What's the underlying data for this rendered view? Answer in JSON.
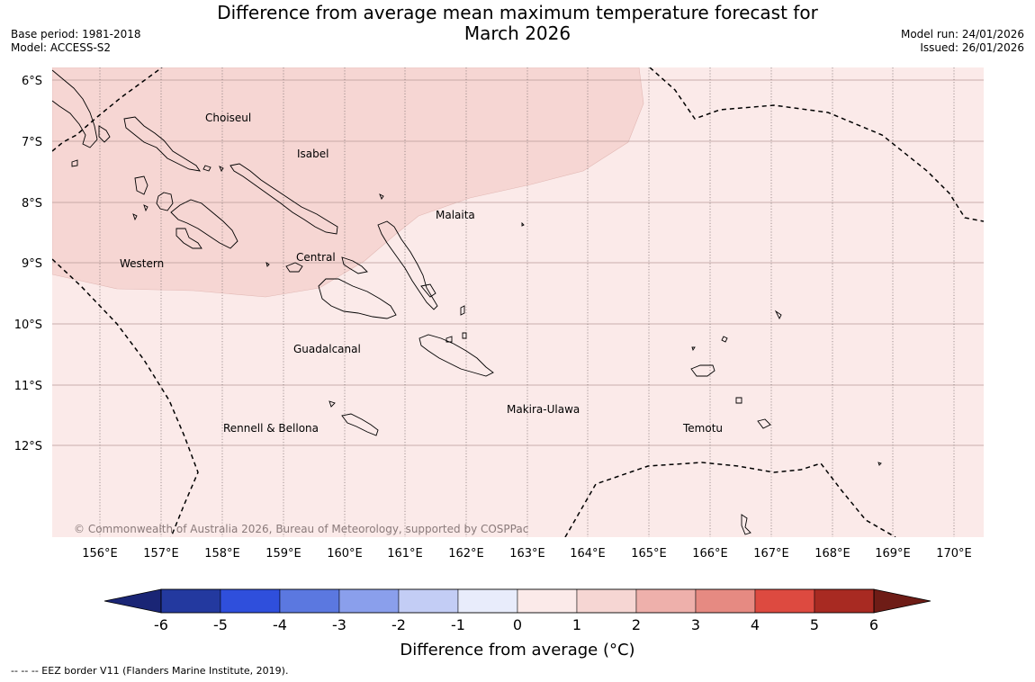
{
  "title": {
    "line1": "Difference from average mean maximum temperature forecast for",
    "line2": "March 2026"
  },
  "meta": {
    "base_period": "Base period: 1981-2018",
    "model": "Model: ACCESS-S2",
    "model_run": "Model run: 24/01/2026",
    "issued": "Issued: 26/01/2026"
  },
  "map": {
    "lat_labels": [
      "6°S",
      "7°S",
      "8°S",
      "9°S",
      "10°S",
      "11°S",
      "12°S"
    ],
    "lon_labels": [
      "156°E",
      "157°E",
      "158°E",
      "159°E",
      "160°E",
      "161°E",
      "162°E",
      "163°E",
      "164°E",
      "165°E",
      "166°E",
      "167°E",
      "168°E",
      "169°E",
      "170°E"
    ],
    "region_labels": [
      "Choiseul",
      "Isabel",
      "Malaita",
      "Western",
      "Central",
      "Guadalcanal",
      "Makira-Ulawa",
      "Rennell & Bellona",
      "Temotu"
    ],
    "copyright": "© Commonwealth of Australia 2026, Bureau of Meteorology, supported by COSPPac",
    "colors": {
      "zero_to_one": "#fbeae9",
      "one_to_two": "#f6d6d3",
      "coast": "#000000"
    }
  },
  "colorbar": {
    "ticks": [
      "-6",
      "-5",
      "-4",
      "-3",
      "-2",
      "-1",
      "0",
      "1",
      "2",
      "3",
      "4",
      "5",
      "6"
    ],
    "colors": [
      "#23399f",
      "#2f4fdc",
      "#5b78e0",
      "#8a9fec",
      "#c3cdf5",
      "#e8ecfb",
      "#fbeae9",
      "#f6d6d3",
      "#eeb0ab",
      "#e68a82",
      "#dd4a40",
      "#a82a22"
    ],
    "under_color": "#1a2575",
    "over_color": "#6e1c16",
    "label": "Difference from average (°C)"
  },
  "footer": {
    "legend": "-- -- -- EEZ border V11 (Flanders Marine Institute, 2019)."
  }
}
